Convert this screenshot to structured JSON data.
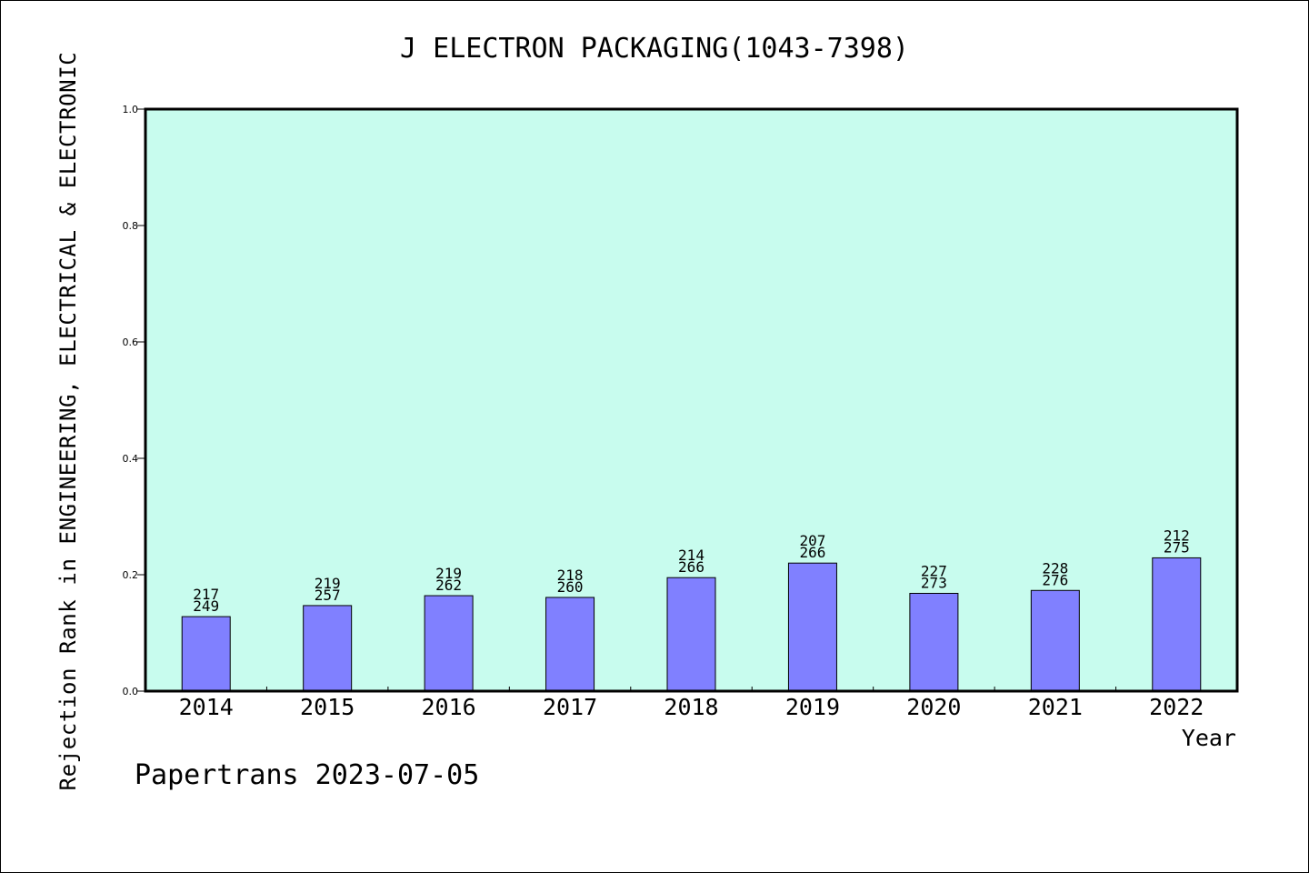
{
  "chart_data": {
    "type": "bar",
    "title": "J ELECTRON PACKAGING(1043-7398)",
    "xlabel": "Year",
    "ylabel": "Rejection Rank in ENGINEERING, ELECTRICAL & ELECTRONIC",
    "footer": "Papertrans 2023-07-05",
    "categories": [
      "2014",
      "2015",
      "2016",
      "2017",
      "2018",
      "2019",
      "2020",
      "2021",
      "2022"
    ],
    "values": [
      0.128,
      0.147,
      0.164,
      0.161,
      0.195,
      0.22,
      0.168,
      0.173,
      0.229
    ],
    "label_top": [
      "217",
      "219",
      "219",
      "218",
      "214",
      "207",
      "227",
      "228",
      "212"
    ],
    "label_bottom": [
      "249",
      "257",
      "262",
      "260",
      "266",
      "266",
      "273",
      "276",
      "275"
    ],
    "ylim": [
      0,
      1.0
    ],
    "yticks": [
      "0.0",
      "0.2",
      "0.4",
      "0.6",
      "0.8",
      "1.0"
    ],
    "grid": false,
    "colors": {
      "plot_bg": "#c8fcee",
      "bar": "#8080ff",
      "axis": "#000000"
    }
  }
}
